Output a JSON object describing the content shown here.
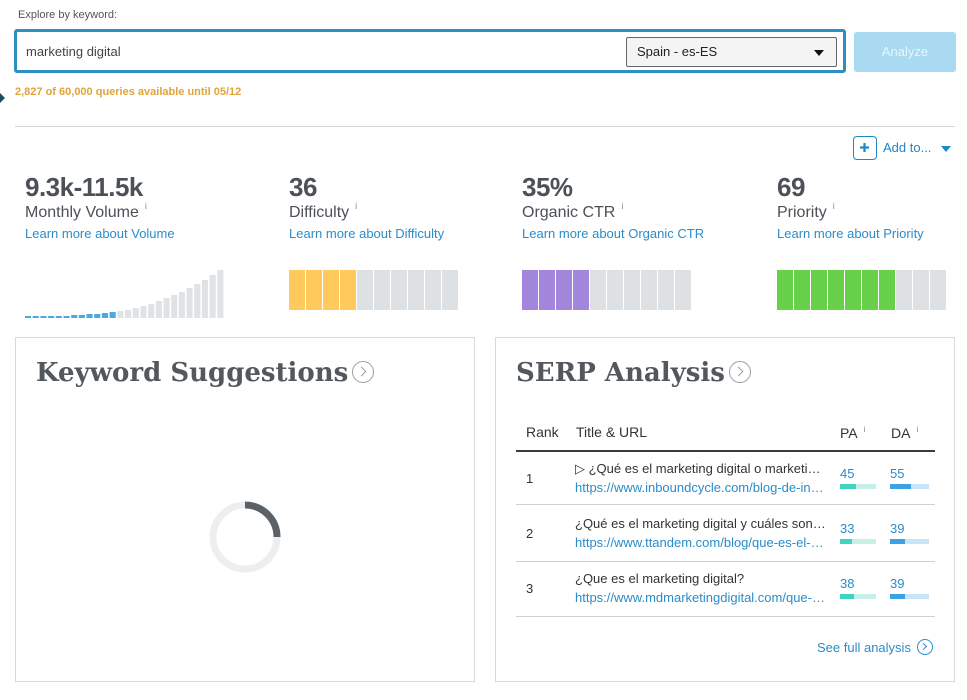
{
  "search": {
    "label": "Explore by keyword:",
    "value": "marketing digital",
    "locale": "Spain - es-ES",
    "analyze_label": "Analyze",
    "queries_note": "2,827 of 60,000 queries available until 05/12"
  },
  "actions": {
    "add_to_label": "Add to..."
  },
  "metrics": {
    "volume": {
      "value": "9.3k-11.5k",
      "label": "Monthly Volume",
      "link": "Learn more about Volume",
      "info": "i"
    },
    "difficulty": {
      "value": "36",
      "label": "Difficulty",
      "link": "Learn more about Difficulty",
      "info": "i",
      "filled": 4,
      "total": 10,
      "color": "#ffc95c"
    },
    "ctr": {
      "value": "35%",
      "label": "Organic CTR",
      "link": "Learn more about Organic CTR",
      "info": "i",
      "filled": 4,
      "total": 10,
      "color": "#a286dc"
    },
    "priority": {
      "value": "69",
      "label": "Priority",
      "link": "Learn more about Priority",
      "info": "i",
      "filled": 7,
      "total": 10,
      "color": "#66d04b"
    }
  },
  "volume_trend": {
    "values": [
      1,
      1,
      1,
      2,
      2,
      2,
      3,
      3,
      4,
      4,
      5,
      6,
      7,
      8,
      10,
      12,
      14,
      17,
      20,
      23,
      26,
      30,
      34,
      38,
      43,
      48
    ],
    "highlight_count": 12,
    "highlight_color": "#4aa9dd",
    "base_color": "#dfe3e5"
  },
  "keyword_suggestions": {
    "title": "Keyword Suggestions"
  },
  "serp": {
    "title": "SERP Analysis",
    "headers": {
      "rank": "Rank",
      "title_url": "Title & URL",
      "pa": "PA",
      "da": "DA",
      "info": "i"
    },
    "rows": [
      {
        "rank": "1",
        "title": "▷ ¿Qué es el marketing digital o marketing online?",
        "url": "https://www.inboundcycle.com/blog-de-inbound-marketing",
        "pa": "45",
        "da": "55"
      },
      {
        "rank": "2",
        "title": "¿Qué es el marketing digital y cuáles son sus ventajas?",
        "url": "https://www.ttandem.com/blog/que-es-el-marketing-digital",
        "pa": "33",
        "da": "39"
      },
      {
        "rank": "3",
        "title": "¿Que es el marketing digital?",
        "url": "https://www.mdmarketingdigital.com/que-es-el-marketing-digital",
        "pa": "38",
        "da": "39"
      }
    ],
    "full_link": "See full analysis"
  }
}
